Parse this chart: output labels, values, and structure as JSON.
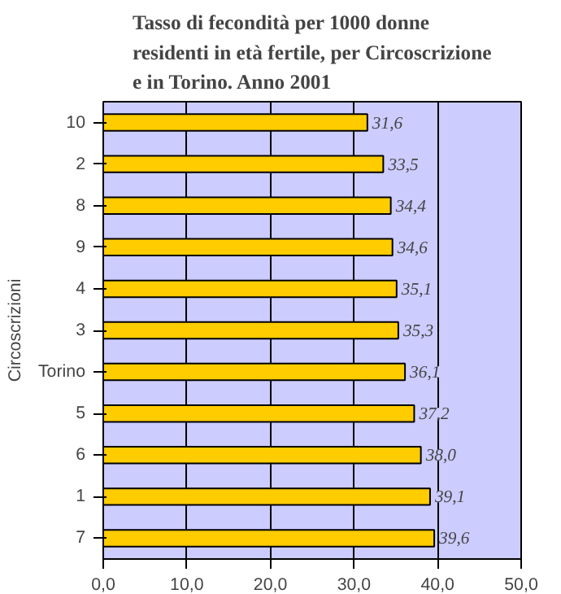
{
  "chart_data": {
    "type": "bar",
    "orientation": "horizontal",
    "title": "Tasso di fecondità per 1000 donne\nresidenti in età fertile, per Circoscrizione\ne in Torino. Anno 2001",
    "ylabel": "Circoscrizioni",
    "categories": [
      "10",
      "2",
      "8",
      "9",
      "4",
      "3",
      "Torino",
      "5",
      "6",
      "1",
      "7"
    ],
    "values": [
      31.6,
      33.5,
      34.4,
      34.6,
      35.1,
      35.3,
      36.1,
      37.2,
      38.0,
      39.1,
      39.6
    ],
    "value_labels": [
      "31,6",
      "33,5",
      "34,4",
      "34,6",
      "35,1",
      "35,3",
      "36,1",
      "37,2",
      "38,0",
      "39,1",
      "39,6"
    ],
    "color": "#ffcc00",
    "xlim": [
      0,
      50
    ],
    "xticks": [
      {
        "value": 0,
        "label": "0,0"
      },
      {
        "value": 10,
        "label": "10,0"
      },
      {
        "value": 20,
        "label": "20,0"
      },
      {
        "value": 30,
        "label": "30,0"
      },
      {
        "value": 40,
        "label": "40,0"
      },
      {
        "value": 50,
        "label": "50,0"
      }
    ],
    "grid": "x"
  }
}
